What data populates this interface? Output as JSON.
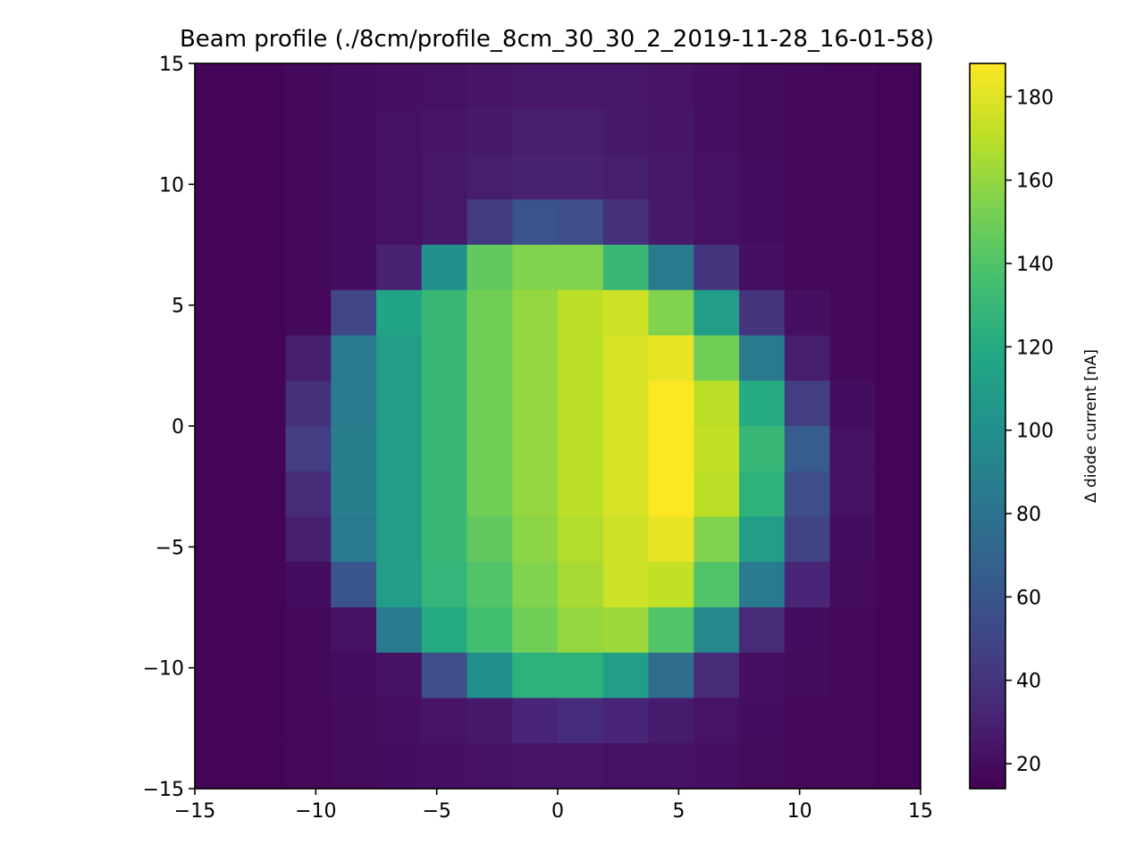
{
  "chart_data": {
    "type": "heatmap",
    "title": "Beam profile (./8cm/profile_8cm_30_30_2_2019-11-28_16-01-58)",
    "xlim": [
      -15,
      15
    ],
    "ylim": [
      -15,
      15
    ],
    "x_ticks": [
      "−15",
      "−10",
      "−5",
      "0",
      "5",
      "10",
      "15"
    ],
    "x_tick_values": [
      -15,
      -10,
      -5,
      0,
      5,
      10,
      15
    ],
    "y_ticks": [
      "−15",
      "−10",
      "−5",
      "0",
      "5",
      "10",
      "15"
    ],
    "y_tick_values": [
      -15,
      -10,
      -5,
      0,
      5,
      10,
      15
    ],
    "colorbar": {
      "label": "Δ diode current [nA]",
      "range": [
        14,
        188
      ],
      "ticks": [
        "20",
        "40",
        "60",
        "80",
        "100",
        "120",
        "140",
        "160",
        "180"
      ],
      "tick_values": [
        20,
        40,
        60,
        80,
        100,
        120,
        140,
        160,
        180
      ],
      "colormap": "viridis"
    },
    "grid": {
      "nx": 16,
      "ny": 16,
      "x_range": [
        -15,
        15
      ],
      "y_range": [
        -15,
        15
      ]
    },
    "values_rows_top_to_bottom": [
      [
        16,
        16,
        18,
        20,
        21,
        22,
        24,
        25,
        25,
        25,
        23,
        21,
        19,
        18,
        17,
        16
      ],
      [
        16,
        16,
        18,
        20,
        22,
        24,
        26,
        28,
        28,
        26,
        24,
        21,
        19,
        18,
        17,
        16
      ],
      [
        16,
        16,
        18,
        20,
        22,
        25,
        28,
        30,
        30,
        28,
        25,
        22,
        20,
        18,
        17,
        16
      ],
      [
        16,
        16,
        18,
        20,
        22,
        26,
        44,
        58,
        55,
        38,
        26,
        22,
        20,
        18,
        17,
        16
      ],
      [
        16,
        16,
        18,
        20,
        30,
        100,
        145,
        155,
        155,
        130,
        85,
        40,
        21,
        18,
        17,
        16
      ],
      [
        16,
        16,
        18,
        50,
        115,
        130,
        150,
        160,
        170,
        175,
        155,
        110,
        40,
        21,
        18,
        16
      ],
      [
        16,
        16,
        28,
        85,
        110,
        130,
        150,
        160,
        170,
        178,
        182,
        150,
        85,
        28,
        18,
        16
      ],
      [
        16,
        16,
        38,
        85,
        110,
        130,
        150,
        160,
        170,
        178,
        188,
        170,
        120,
        45,
        20,
        16
      ],
      [
        16,
        16,
        45,
        88,
        110,
        130,
        150,
        160,
        170,
        178,
        188,
        172,
        130,
        65,
        22,
        16
      ],
      [
        16,
        16,
        35,
        88,
        110,
        130,
        150,
        160,
        170,
        178,
        188,
        170,
        125,
        55,
        22,
        16
      ],
      [
        16,
        16,
        28,
        85,
        110,
        130,
        145,
        158,
        168,
        175,
        182,
        155,
        110,
        48,
        20,
        16
      ],
      [
        16,
        16,
        20,
        60,
        110,
        128,
        140,
        155,
        165,
        175,
        172,
        140,
        85,
        32,
        19,
        16
      ],
      [
        16,
        16,
        18,
        22,
        85,
        120,
        135,
        150,
        160,
        162,
        140,
        95,
        35,
        20,
        18,
        16
      ],
      [
        16,
        16,
        18,
        20,
        22,
        55,
        100,
        125,
        125,
        110,
        75,
        35,
        21,
        19,
        17,
        16
      ],
      [
        16,
        16,
        17,
        19,
        21,
        23,
        26,
        32,
        36,
        32,
        27,
        23,
        20,
        18,
        17,
        16
      ],
      [
        16,
        16,
        17,
        19,
        20,
        21,
        22,
        23,
        23,
        22,
        22,
        21,
        19,
        18,
        17,
        16
      ]
    ]
  }
}
